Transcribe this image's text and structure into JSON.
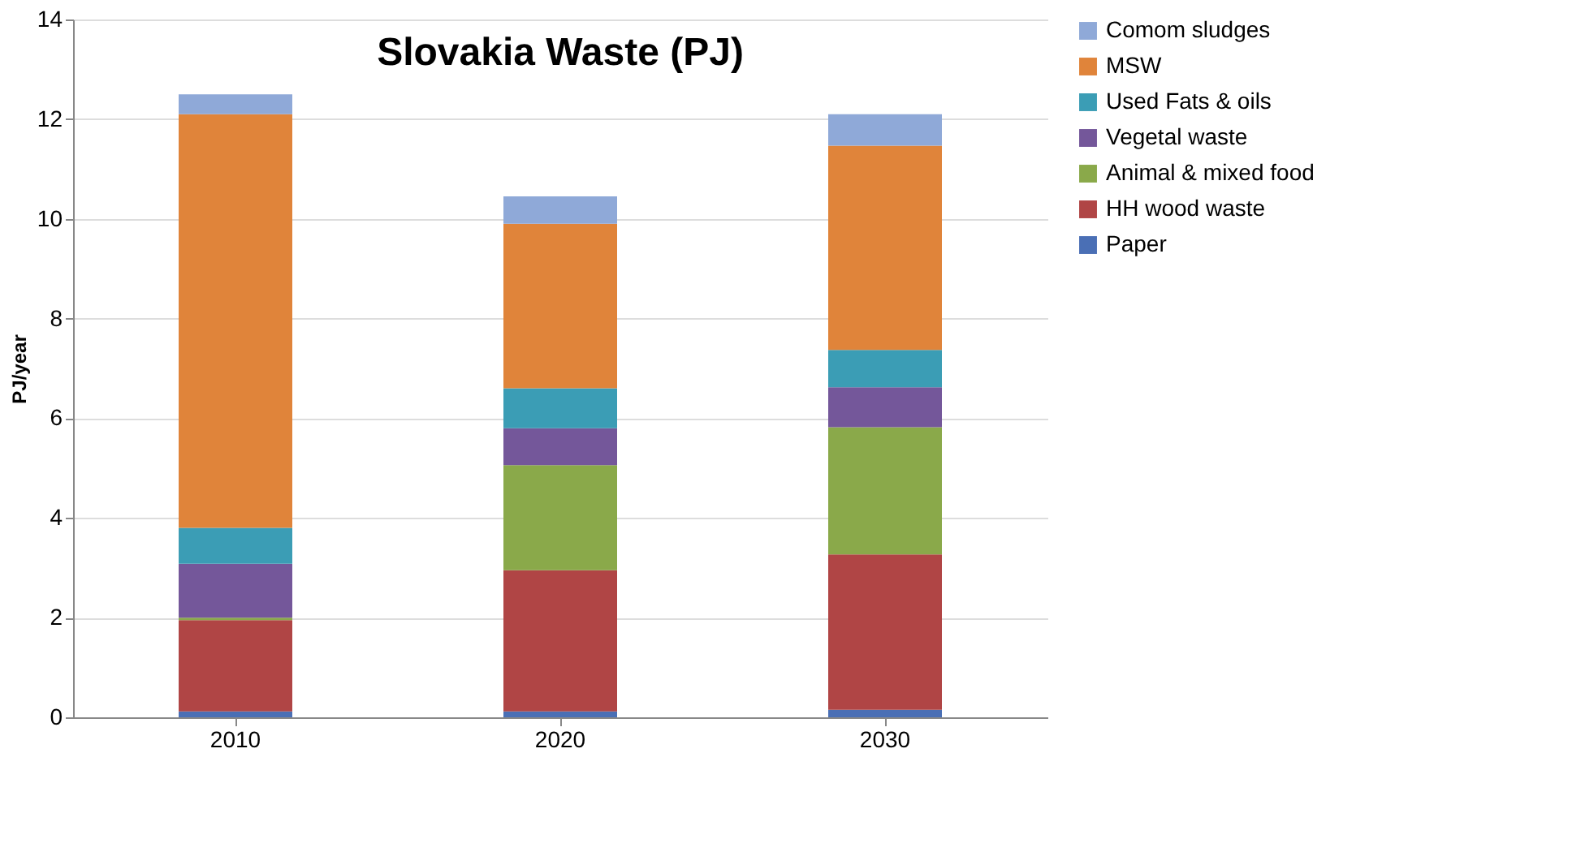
{
  "chart_data": {
    "type": "bar",
    "title": "Slovakia Waste (PJ)",
    "ylabel": "PJ/year",
    "categories": [
      "2010",
      "2020",
      "2030"
    ],
    "stacked": true,
    "ylim": [
      0,
      14
    ],
    "yticks": [
      0,
      2,
      4,
      6,
      8,
      10,
      12,
      14
    ],
    "grid": "y",
    "legend": "right",
    "series": [
      {
        "name": "Paper",
        "color": "#4a6fb5",
        "values": [
          0.12,
          0.12,
          0.15
        ]
      },
      {
        "name": "HH wood waste",
        "color": "#b04545",
        "values": [
          1.83,
          2.83,
          3.12
        ]
      },
      {
        "name": "Animal & mixed food",
        "color": "#8aa94a",
        "values": [
          0.05,
          2.11,
          2.55
        ]
      },
      {
        "name": "Vegetal waste",
        "color": "#74579a",
        "values": [
          1.08,
          0.74,
          0.8
        ]
      },
      {
        "name": "Used Fats & oils",
        "color": "#3b9db5",
        "values": [
          0.72,
          0.8,
          0.75
        ]
      },
      {
        "name": "MSW",
        "color": "#e0843a",
        "values": [
          8.3,
          3.3,
          4.1
        ]
      },
      {
        "name": "Comom sludges",
        "color": "#8fa9d8",
        "values": [
          0.4,
          0.55,
          0.63
        ]
      }
    ]
  }
}
